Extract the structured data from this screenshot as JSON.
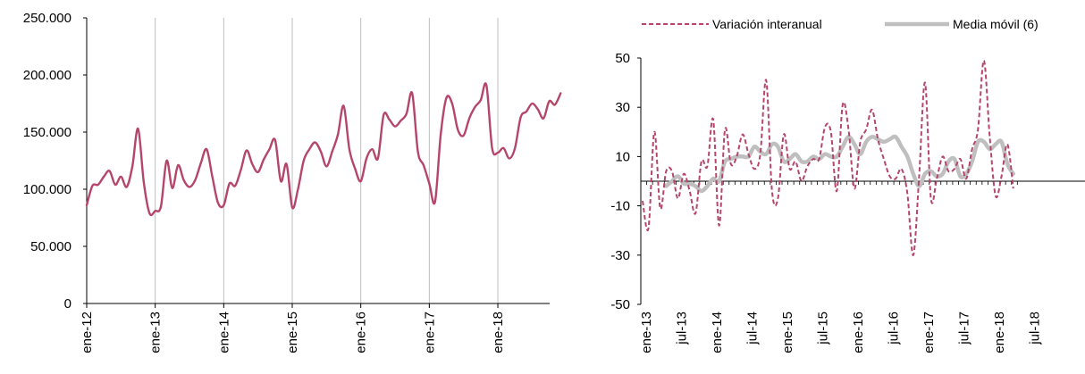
{
  "chart_data": [
    {
      "type": "line",
      "title": "",
      "xlabel": "",
      "ylabel": "",
      "ylim": [
        0,
        250000
      ],
      "y_ticks": [
        "0",
        "50.000",
        "100.000",
        "150.000",
        "200.000",
        "250.000"
      ],
      "x_tick_labels": [
        "ene-12",
        "ene-13",
        "ene-14",
        "ene-15",
        "ene-16",
        "ene-17",
        "ene-18"
      ],
      "grid": "vertical lines at each January",
      "colors": {
        "series": "#B5466A",
        "axis": "#000000",
        "grid": "#BFBFBF"
      },
      "series": [
        {
          "values": [
            86000,
            103000,
            104000,
            111000,
            116000,
            104000,
            111000,
            102000,
            120000,
            153000,
            106000,
            79000,
            81000,
            85000,
            125000,
            101000,
            121000,
            108000,
            102000,
            108000,
            123000,
            135000,
            111000,
            88000,
            86000,
            105000,
            103000,
            117000,
            134000,
            122000,
            115000,
            126000,
            135000,
            143000,
            107000,
            122000,
            84000,
            100000,
            125000,
            135000,
            141000,
            133000,
            120000,
            133000,
            148000,
            173000,
            135000,
            118000,
            107000,
            127000,
            135000,
            127000,
            165000,
            161000,
            155000,
            160000,
            166000,
            184000,
            133000,
            121000,
            105000,
            89000,
            148000,
            180000,
            175000,
            152000,
            147000,
            162000,
            172000,
            178000,
            191000,
            136000,
            132000,
            136000,
            127000,
            136000,
            163000,
            168000,
            175000,
            170000,
            162000,
            177000,
            174000,
            184000
          ]
        }
      ]
    },
    {
      "type": "line",
      "title": "",
      "xlabel": "",
      "ylabel": "",
      "ylim": [
        -50,
        50
      ],
      "y_ticks": [
        "-50",
        "-30",
        "-10",
        "10",
        "30",
        "50"
      ],
      "x_tick_labels": [
        "ene-13",
        "jul-13",
        "ene-14",
        "jul-14",
        "ene-15",
        "jul-15",
        "ene-16",
        "jul-16",
        "ene-17",
        "jul-17",
        "ene-18",
        "jul-18"
      ],
      "legend_position": "top",
      "colors": {
        "interanual": "#B5466A",
        "media": "#BFBFBF",
        "axis": "#000000"
      },
      "series": [
        {
          "name": "Variación interanual",
          "style": "dashed",
          "values": [
            -8,
            -19,
            20,
            -11,
            4,
            4,
            -7,
            3,
            -4,
            -13,
            8,
            6,
            25,
            -18,
            21,
            7,
            10,
            19,
            11,
            5,
            11,
            41,
            -4,
            -7,
            19,
            5,
            8,
            0,
            6,
            9,
            9,
            22,
            20,
            -4,
            31,
            21,
            -3,
            16,
            21,
            29,
            17,
            9,
            2,
            1,
            5,
            -5,
            -30,
            2,
            40,
            -7,
            1,
            10,
            4,
            5,
            9,
            1,
            13,
            21,
            49,
            18,
            -6,
            2,
            15,
            -3
          ]
        },
        {
          "name": "Media móvil (6)",
          "style": "solid",
          "values": [
            null,
            null,
            null,
            null,
            -2,
            0,
            2,
            -1,
            -1,
            -2,
            -4,
            -2,
            1,
            0,
            8,
            9,
            10,
            10,
            10,
            14,
            12,
            11,
            15,
            14,
            8,
            9,
            11,
            8,
            8,
            10,
            9,
            11,
            10,
            10,
            14,
            18,
            15,
            11,
            16,
            18,
            17,
            16,
            17,
            18,
            14,
            10,
            3,
            -2,
            3,
            4,
            2,
            3,
            8,
            9,
            2,
            3,
            8,
            16,
            16,
            13,
            15,
            16,
            7,
            3
          ]
        }
      ]
    }
  ]
}
